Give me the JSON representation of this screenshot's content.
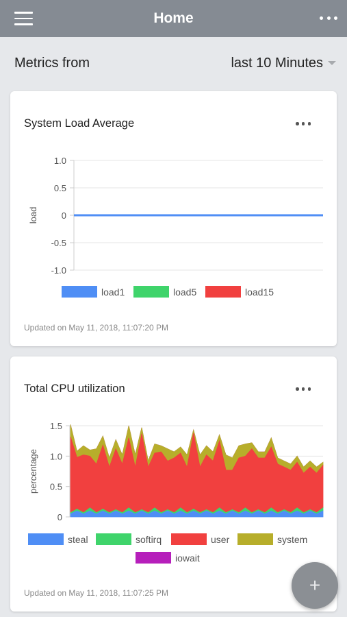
{
  "appbar": {
    "title": "Home"
  },
  "metrics": {
    "label": "Metrics from",
    "range": "last 10 Minutes"
  },
  "cards": [
    {
      "title": "System Load Average",
      "updated": "Updated on May 11, 2018, 11:07:20 PM"
    },
    {
      "title": "Total CPU utilization",
      "updated": "Updated on May 11, 2018, 11:07:25 PM"
    }
  ],
  "colors": {
    "appbar": "#858b93",
    "background": "#e6e8eb",
    "blue": "#4f8ef5",
    "green": "#3fd46b",
    "red": "#f1403f",
    "olive": "#b7ae2b",
    "purple": "#b61fbb"
  },
  "chart_data": [
    {
      "type": "line",
      "title": "System Load Average",
      "xlabel": "",
      "ylabel": "load",
      "ylim": [
        -1.0,
        1.0
      ],
      "yticks": [
        "1.0",
        "0.5",
        "0",
        "-0.5",
        "-1.0"
      ],
      "grid": true,
      "legend_placement": "bottom",
      "series": [
        {
          "name": "load1",
          "color": "#4f8ef5",
          "values": [
            0,
            0,
            0,
            0,
            0,
            0,
            0,
            0,
            0,
            0
          ]
        },
        {
          "name": "load5",
          "color": "#3fd46b",
          "values": [
            0,
            0,
            0,
            0,
            0,
            0,
            0,
            0,
            0,
            0
          ]
        },
        {
          "name": "load15",
          "color": "#f1403f",
          "values": [
            0,
            0,
            0,
            0,
            0,
            0,
            0,
            0,
            0,
            0
          ]
        }
      ]
    },
    {
      "type": "area",
      "title": "Total CPU utilization",
      "xlabel": "",
      "ylabel": "percentage",
      "ylim": [
        0,
        1.5
      ],
      "yticks": [
        "1.5",
        "1.0",
        "0.5",
        "0"
      ],
      "grid": true,
      "legend_placement": "bottom",
      "series": [
        {
          "name": "steal",
          "color": "#4f8ef5",
          "values": [
            0.05,
            0.1,
            0.05,
            0.1,
            0.05,
            0.1,
            0.05,
            0.1,
            0.05,
            0.1,
            0.05,
            0.1,
            0.05,
            0.1,
            0.05,
            0.1,
            0.05,
            0.1,
            0.05,
            0.1,
            0.05,
            0.1,
            0.05,
            0.1,
            0.05,
            0.1,
            0.05,
            0.1,
            0.05,
            0.1,
            0.05,
            0.1,
            0.05,
            0.1,
            0.05,
            0.1,
            0.05,
            0.1,
            0.05,
            0.1
          ]
        },
        {
          "name": "softirq",
          "color": "#3fd46b",
          "values": [
            0.02,
            0.03,
            0.02,
            0.05,
            0.02,
            0.03,
            0.02,
            0.02,
            0.02,
            0.05,
            0.02,
            0.02,
            0.02,
            0.05,
            0.02,
            0.02,
            0.02,
            0.05,
            0.02,
            0.03,
            0.02,
            0.02,
            0.02,
            0.05,
            0.02,
            0.02,
            0.02,
            0.05,
            0.02,
            0.02,
            0.02,
            0.05,
            0.02,
            0.02,
            0.02,
            0.05,
            0.02,
            0.02,
            0.02,
            0.05
          ]
        },
        {
          "name": "user",
          "color": "#f1403f",
          "values": [
            1.25,
            0.85,
            0.95,
            0.85,
            0.8,
            1.05,
            0.75,
            1.0,
            0.8,
            1.15,
            0.75,
            1.25,
            0.75,
            0.9,
            1.0,
            0.8,
            0.9,
            0.9,
            0.75,
            1.25,
            0.75,
            0.9,
            0.85,
            1.1,
            0.7,
            0.65,
            0.9,
            0.85,
            1.05,
            0.85,
            0.9,
            1.0,
            0.8,
            0.7,
            0.7,
            0.75,
            0.65,
            0.7,
            0.65,
            0.7
          ]
        },
        {
          "name": "system",
          "color": "#b7ae2b",
          "values": [
            0.2,
            0.1,
            0.15,
            0.1,
            0.25,
            0.15,
            0.15,
            0.15,
            0.15,
            0.2,
            0.2,
            0.1,
            0.1,
            0.15,
            0.1,
            0.2,
            0.1,
            0.1,
            0.2,
            0.05,
            0.2,
            0.15,
            0.15,
            0.1,
            0.25,
            0.2,
            0.2,
            0.2,
            0.1,
            0.1,
            0.1,
            0.15,
            0.1,
            0.1,
            0.1,
            0.1,
            0.1,
            0.1,
            0.1,
            0.05
          ]
        },
        {
          "name": "iowait",
          "color": "#b61fbb",
          "values": [
            0,
            0,
            0,
            0,
            0,
            0,
            0,
            0,
            0,
            0,
            0,
            0,
            0,
            0,
            0,
            0,
            0,
            0,
            0,
            0,
            0,
            0,
            0,
            0,
            0,
            0,
            0,
            0,
            0,
            0,
            0,
            0,
            0,
            0,
            0,
            0,
            0,
            0,
            0,
            0
          ]
        }
      ]
    }
  ]
}
